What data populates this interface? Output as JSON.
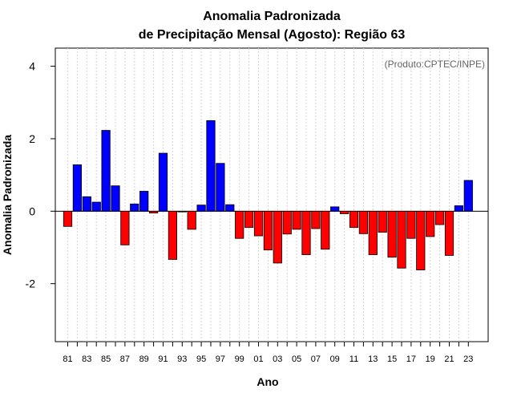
{
  "chart_data": {
    "type": "bar",
    "title_line1": "Anomalia Padronizada",
    "title_line2": "de Precipitação Mensal (Agosto): Região 63",
    "xlabel": "Ano",
    "ylabel": "Anomalia Padronizada",
    "credit": "(Produto:CPTEC/INPE)",
    "ylim": [
      -3.6,
      4.5
    ],
    "yticks": [
      -2,
      0,
      2,
      4
    ],
    "ytick_labels": [
      "-2",
      "0",
      "2",
      "4"
    ],
    "categories": [
      "81",
      "82",
      "83",
      "84",
      "85",
      "86",
      "87",
      "88",
      "89",
      "90",
      "91",
      "92",
      "93",
      "94",
      "95",
      "96",
      "97",
      "98",
      "99",
      "00",
      "01",
      "02",
      "03",
      "04",
      "05",
      "06",
      "07",
      "08",
      "09",
      "10",
      "11",
      "12",
      "13",
      "14",
      "15",
      "16",
      "17",
      "18",
      "19",
      "20",
      "21",
      "22",
      "23"
    ],
    "xtick_labels": [
      "81",
      "83",
      "85",
      "87",
      "89",
      "91",
      "93",
      "95",
      "97",
      "99",
      "01",
      "03",
      "05",
      "07",
      "09",
      "11",
      "13",
      "15",
      "17",
      "19",
      "21",
      "23"
    ],
    "values": [
      -0.42,
      1.28,
      0.4,
      0.25,
      2.23,
      0.7,
      -0.93,
      0.2,
      0.55,
      -0.05,
      1.6,
      -1.33,
      -0.02,
      -0.5,
      0.17,
      2.5,
      1.32,
      0.18,
      -0.75,
      -0.45,
      -0.68,
      -1.07,
      -1.43,
      -0.63,
      -0.5,
      -1.2,
      -0.48,
      -1.05,
      0.12,
      -0.07,
      -0.45,
      -0.62,
      -1.2,
      -0.58,
      -1.27,
      -1.57,
      -0.75,
      -1.62,
      -0.7,
      -0.37,
      -1.22,
      0.15,
      0.85
    ],
    "colors": {
      "positive": "#0000ff",
      "negative": "#ff0000",
      "grid": "#d3d3d3"
    }
  }
}
